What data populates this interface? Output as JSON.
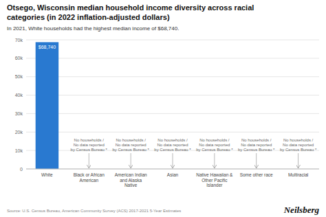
{
  "chart_data": {
    "type": "bar",
    "title": "Otsego, Wisconsin median household income diversity across racial\ncategories (in 2022 inflation-adjusted dollars)",
    "subtitle": "In 2021, White households had the highest median income of $68,740.",
    "categories": [
      "White",
      "Black or African\nAmerican",
      "American Indian\nand Alaska\nNative",
      "Asian",
      "Native Hawaiian &\nOther Pacific\nIslander",
      "Some other race",
      "Multiracial"
    ],
    "values": [
      68740,
      0,
      0,
      0,
      0,
      0,
      0
    ],
    "data_labels": true,
    "value_labels": [
      "$68,740",
      null,
      null,
      null,
      null,
      null,
      null
    ],
    "color": "#2979d0",
    "ylim": [
      0,
      70000
    ],
    "yticks": [
      0,
      {
        "value": 10000,
        "label": "10k"
      },
      {
        "value": 20000,
        "label": "20k"
      },
      {
        "value": 30000,
        "label": "30k"
      },
      {
        "value": 40000,
        "label": "40k"
      },
      {
        "value": 50000,
        "label": "50k"
      },
      {
        "value": 60000,
        "label": "60k"
      },
      {
        "value": 70000,
        "label": "70k"
      }
    ],
    "grid": true,
    "annotations": [
      {
        "category": "Black or African\nAmerican",
        "text": "No households /\nNo data reported\nby Census Bureau *"
      },
      {
        "category": "American Indian\nand Alaska\nNative",
        "text": "No households /\nNo data reported\nby Census Bureau *"
      },
      {
        "category": "Asian",
        "text": "No households /\nNo data reported\nby Census Bureau *"
      },
      {
        "category": "Native Hawaiian &\nOther Pacific\nIslander",
        "text": "No households /\nNo data reported\nby Census Bureau *"
      },
      {
        "category": "Some other race",
        "text": "No households /\nNo data reported\nby Census Bureau *"
      },
      {
        "category": "Multiracial",
        "text": "No households /\nNo data reported\nby Census Bureau *"
      }
    ],
    "source": "Source: U.S. Census Bureau, American Community Survey (ACS) 2017-2021 5-Year Estimates",
    "credit": "Neilsberg"
  }
}
